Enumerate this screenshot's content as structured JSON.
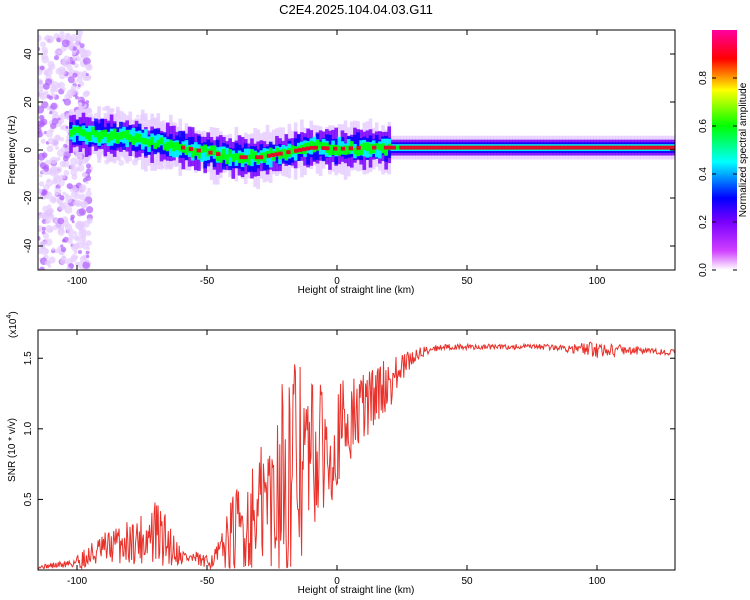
{
  "title": "C2E4.2025.104.04.03.G11",
  "colors": {
    "snr_line": "#e8322b",
    "band_center": "#e0102a"
  },
  "chart_data": [
    {
      "type": "heatmap",
      "xlabel": "Height of straight line (km)",
      "ylabel": "Frequency (Hz)",
      "xlim": [
        -115,
        130
      ],
      "ylim": [
        -50,
        50
      ],
      "xticks": [
        -100,
        -50,
        0,
        50,
        100
      ],
      "yticks": [
        -40,
        -20,
        0,
        20,
        40
      ],
      "colorbar": {
        "label": "Normalized spectral amplitude",
        "range": [
          0,
          1
        ],
        "ticks": [
          "0.0",
          "0.2",
          "0.4",
          "0.6",
          "0.8"
        ],
        "colormap": [
          "#ffffff",
          "#d040ff",
          "#7a00ff",
          "#0000ff",
          "#00ffff",
          "#00ff00",
          "#ffff00",
          "#ff0000",
          "#ff00a0"
        ]
      },
      "dominant_frequency": [
        {
          "x": -110,
          "y": 8
        },
        {
          "x": -100,
          "y": 7
        },
        {
          "x": -90,
          "y": 6
        },
        {
          "x": -80,
          "y": 5
        },
        {
          "x": -70,
          "y": 3
        },
        {
          "x": -60,
          "y": 1
        },
        {
          "x": -50,
          "y": -1
        },
        {
          "x": -40,
          "y": -3
        },
        {
          "x": -30,
          "y": -3
        },
        {
          "x": -20,
          "y": -1
        },
        {
          "x": -10,
          "y": 1
        },
        {
          "x": 0,
          "y": 0.5
        },
        {
          "x": 10,
          "y": 1
        },
        {
          "x": 25,
          "y": 1
        },
        {
          "x": 50,
          "y": 1
        },
        {
          "x": 75,
          "y": 1
        },
        {
          "x": 100,
          "y": 1
        },
        {
          "x": 130,
          "y": 1
        }
      ]
    },
    {
      "type": "line",
      "xlabel": "Height of straight line (km)",
      "ylabel": "SNR (10 * v/v)",
      "scale_label": "(x10",
      "scale_exp": "4",
      "xlim": [
        -115,
        130
      ],
      "ylim": [
        0,
        1.7
      ],
      "xticks": [
        -100,
        -50,
        0,
        50,
        100
      ],
      "yticks": [
        0.5,
        1.0,
        1.5
      ],
      "ytick_labels": [
        "0.5",
        "1.0",
        "1.5"
      ],
      "series": [
        {
          "x": [
            -115,
            -105,
            -100,
            -95,
            -90,
            -85,
            -80,
            -75,
            -70,
            -65,
            -60,
            -55,
            -50,
            -45,
            -40,
            -35,
            -30,
            -25,
            -20,
            -15,
            -10,
            -5,
            0,
            5,
            10,
            15,
            20,
            25,
            30,
            35,
            40,
            50,
            60,
            70,
            80,
            90,
            100,
            110,
            120,
            130
          ],
          "mean": [
            0.02,
            0.04,
            0.06,
            0.1,
            0.14,
            0.18,
            0.2,
            0.22,
            0.25,
            0.2,
            0.1,
            0.08,
            0.05,
            0.12,
            0.25,
            0.32,
            0.4,
            0.55,
            0.7,
            0.75,
            0.8,
            0.85,
            0.95,
            1.05,
            1.15,
            1.25,
            1.32,
            1.42,
            1.52,
            1.56,
            1.58,
            1.58,
            1.58,
            1.58,
            1.58,
            1.57,
            1.56,
            1.56,
            1.55,
            1.54
          ],
          "spread": [
            0.01,
            0.03,
            0.06,
            0.1,
            0.12,
            0.14,
            0.16,
            0.18,
            0.28,
            0.18,
            0.06,
            0.06,
            0.05,
            0.1,
            0.3,
            0.35,
            0.45,
            0.6,
            0.85,
            0.75,
            0.6,
            0.45,
            0.4,
            0.3,
            0.28,
            0.22,
            0.18,
            0.12,
            0.05,
            0.03,
            0.02,
            0.02,
            0.02,
            0.02,
            0.02,
            0.03,
            0.06,
            0.04,
            0.02,
            0.02
          ]
        }
      ]
    }
  ]
}
